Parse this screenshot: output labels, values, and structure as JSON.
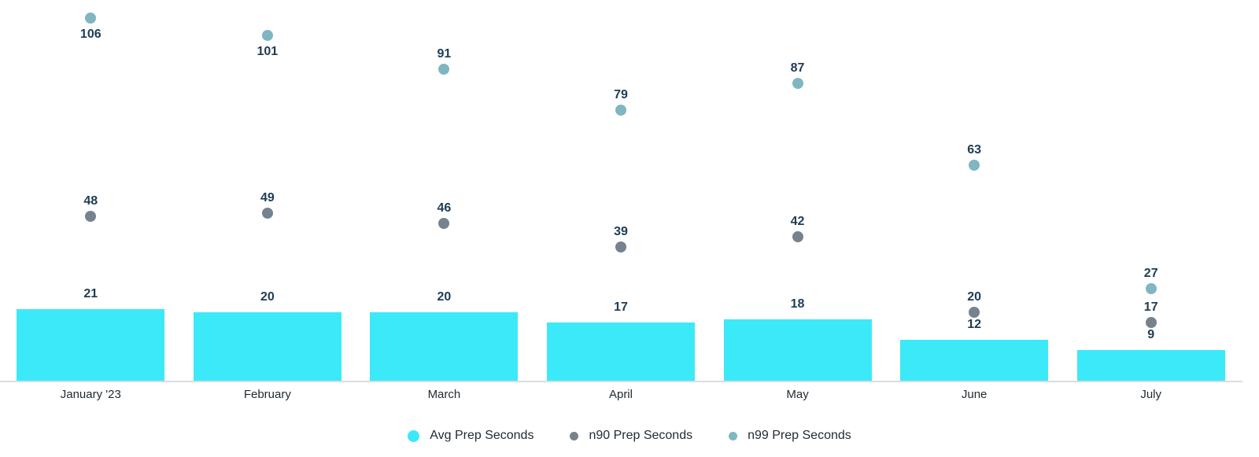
{
  "chart_data": {
    "type": "bar",
    "subtype": "bar-with-scatter-overlay",
    "categories": [
      "January '23",
      "February",
      "March",
      "April",
      "May",
      "June",
      "July"
    ],
    "series": [
      {
        "name": "Avg Prep Seconds",
        "type": "bar",
        "values": [
          21,
          20,
          20,
          17,
          18,
          12,
          9
        ],
        "color": "#3ce9f9"
      },
      {
        "name": "n90 Prep Seconds",
        "type": "scatter",
        "values": [
          48,
          49,
          46,
          39,
          42,
          20,
          17
        ],
        "color": "#76838f"
      },
      {
        "name": "n99 Prep Seconds",
        "type": "scatter",
        "values": [
          106,
          101,
          91,
          79,
          87,
          63,
          27
        ],
        "color": "#7fb6c2",
        "label_below": [
          true,
          true,
          false,
          false,
          false,
          false,
          false
        ]
      }
    ],
    "title": "",
    "xlabel": "",
    "ylabel": "",
    "ylim": [
      0,
      111
    ],
    "grid": false,
    "y_axis_visible": false,
    "legend_position": "bottom",
    "value_labels_shown": true
  },
  "style": {
    "value_label_color": "#1e3c54",
    "axis_text_color": "#222b33",
    "legend_text_color": "#222b33",
    "axis_line_color": "#d8dce2",
    "background_color": "#ffffff"
  }
}
